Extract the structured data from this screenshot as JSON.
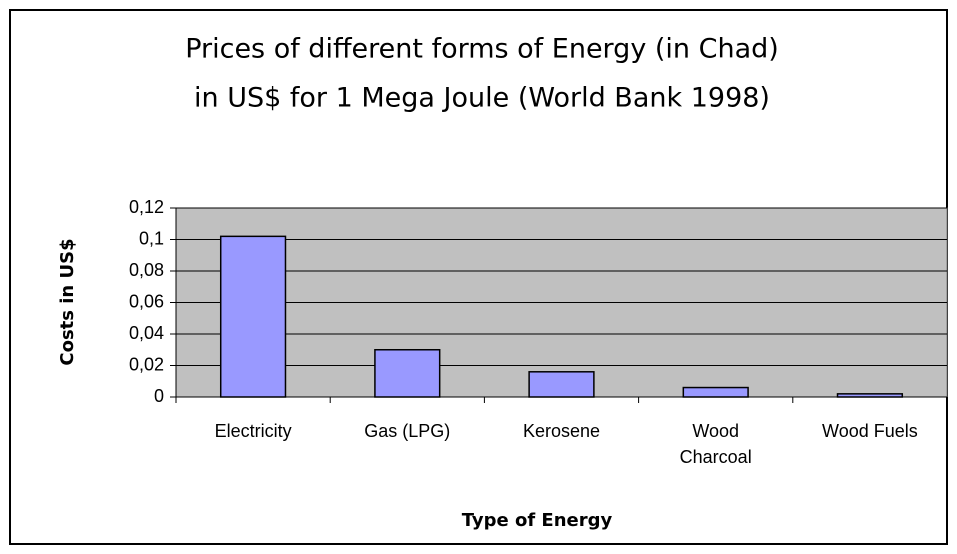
{
  "chart_data": {
    "type": "bar",
    "title": [
      "Prices of different forms of Energy (in Chad)",
      "in US$ for 1 Mega Joule (World Bank 1998)"
    ],
    "x_label": "Type of Energy",
    "y_label": "Costs in US$",
    "categories": [
      "Electricity",
      "Gas (LPG)",
      "Kerosene",
      "Wood Charcoal",
      "Wood Fuels"
    ],
    "values": [
      0.102,
      0.03,
      0.016,
      0.006,
      0.002
    ],
    "color": "#9999ff",
    "ylim": [
      0,
      0.12
    ],
    "yticks": [
      0,
      {
        "value": 0.02,
        "label": "0,02"
      },
      {
        "value": 0.04,
        "label": "0,04"
      },
      {
        "value": 0.06,
        "label": "0,06"
      },
      {
        "value": 0.08,
        "label": "0,08"
      },
      {
        "value": 0.1,
        "label": "0,1"
      },
      {
        "value": 0.12,
        "label": "0,12"
      }
    ],
    "grid": true
  }
}
